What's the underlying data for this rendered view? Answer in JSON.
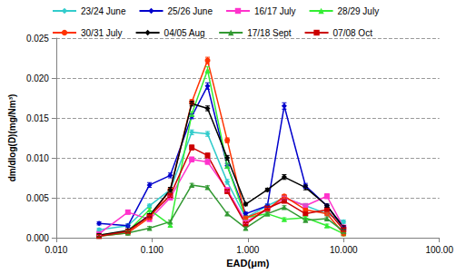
{
  "chart_data": {
    "type": "line",
    "x_label": "EAD(μm)",
    "y_label": "dm/dlog(D)(mg/Nm³)",
    "log": "x",
    "grid": true,
    "legend": "top",
    "xlim": [
      0.01,
      100
    ],
    "xticks": [
      {
        "value": 0.01,
        "label": "0.010"
      },
      {
        "value": 0.1,
        "label": "0.100"
      },
      {
        "value": 1,
        "label": "1.000"
      },
      {
        "value": 10,
        "label": "10.000"
      },
      {
        "value": 100,
        "label": "100.00"
      }
    ],
    "ylim": [
      0,
      0.025
    ],
    "yticks": [
      {
        "value": 0,
        "label": "0.000"
      },
      {
        "value": 0.005,
        "label": "0.005"
      },
      {
        "value": 0.01,
        "label": "0.010"
      },
      {
        "value": 0.015,
        "label": "0.015"
      },
      {
        "value": 0.02,
        "label": "0.020"
      },
      {
        "value": 0.025,
        "label": "0.025"
      }
    ],
    "x": [
      0.028,
      0.056,
      0.094,
      0.155,
      0.26,
      0.38,
      0.61,
      0.95,
      1.6,
      2.4,
      4.0,
      6.7,
      10.0
    ],
    "series": [
      {
        "name": "23/24 June",
        "color": "#33CCCC",
        "marker": "diamond",
        "values": [
          0.001,
          0.0015,
          0.004,
          0.006,
          0.0132,
          0.013,
          0.007,
          0.0025,
          0.004,
          0.005,
          0.004,
          0.003,
          0.002
        ],
        "errors": [
          0.0002,
          0.0002,
          0.0002,
          0.0003,
          0.0003,
          0.0003,
          0.0003,
          0.0002,
          0.0002,
          0.0002,
          0.0002,
          0.0002,
          0.0002
        ]
      },
      {
        "name": "25/26 June",
        "color": "#0000CC",
        "marker": "diamond",
        "values": [
          0.0018,
          0.0015,
          0.0066,
          0.0078,
          0.0152,
          0.019,
          0.009,
          0.003,
          0.004,
          0.0165,
          0.0065,
          0.004,
          0.0012
        ],
        "errors": [
          0.0002,
          0.0002,
          0.0003,
          0.0003,
          0.0003,
          0.0004,
          0.0003,
          0.0002,
          0.0002,
          0.0004,
          0.0003,
          0.0002,
          0.0002
        ]
      },
      {
        "name": "16/17 July",
        "color": "#FF33CC",
        "marker": "square",
        "values": [
          0.0005,
          0.0032,
          0.0023,
          0.005,
          0.0098,
          0.0095,
          0.006,
          0.002,
          0.0035,
          0.005,
          0.004,
          0.0052,
          0.0013
        ],
        "errors": [
          0.0002,
          0.0002,
          0.0002,
          0.0002,
          0.0003,
          0.0003,
          0.0002,
          0.0002,
          0.0002,
          0.0002,
          0.0002,
          0.0003,
          0.0002
        ]
      },
      {
        "name": "28/29 July",
        "color": "#33EE33",
        "marker": "triangle",
        "values": [
          0.0003,
          0.0008,
          0.0035,
          0.0016,
          0.0155,
          0.021,
          0.009,
          0.0025,
          0.003,
          0.0023,
          0.0025,
          0.0015,
          0.0005
        ],
        "errors": [
          0.0002,
          0.0002,
          0.0002,
          0.0002,
          0.0003,
          0.0004,
          0.0003,
          0.0002,
          0.0002,
          0.0002,
          0.0002,
          0.0002,
          0.0002
        ]
      },
      {
        "name": "30/31 July",
        "color": "#FF3300",
        "marker": "circle",
        "values": [
          0.0002,
          0.0006,
          0.0025,
          0.006,
          0.017,
          0.0222,
          0.0122,
          0.0025,
          0.0035,
          0.0052,
          0.0035,
          0.003,
          0.0005
        ],
        "errors": [
          0.0002,
          0.0002,
          0.0002,
          0.0003,
          0.0003,
          0.0004,
          0.0003,
          0.0002,
          0.0002,
          0.0002,
          0.0002,
          0.0002,
          0.0002
        ]
      },
      {
        "name": "04/05 Aug",
        "color": "#000000",
        "marker": "diamond",
        "values": [
          0.0003,
          0.0009,
          0.0028,
          0.006,
          0.0168,
          0.0162,
          0.01,
          0.0042,
          0.006,
          0.0076,
          0.0063,
          0.004,
          0.0013
        ],
        "errors": [
          0.0002,
          0.0002,
          0.0002,
          0.0003,
          0.0003,
          0.0003,
          0.0003,
          0.0002,
          0.0002,
          0.0003,
          0.0003,
          0.0002,
          0.0002
        ]
      },
      {
        "name": "17/18 Sept",
        "color": "#339933",
        "marker": "triangle",
        "values": [
          0.0002,
          0.0006,
          0.0012,
          0.002,
          0.0066,
          0.0063,
          0.003,
          0.0012,
          0.003,
          0.0038,
          0.0022,
          0.0024,
          0.0008
        ],
        "errors": [
          0.0002,
          0.0002,
          0.0002,
          0.0002,
          0.0002,
          0.0002,
          0.0002,
          0.0002,
          0.0002,
          0.0002,
          0.0002,
          0.0002,
          0.0002
        ]
      },
      {
        "name": "07/08 Oct",
        "color": "#CC0000",
        "marker": "dash",
        "values": [
          0.0002,
          0.0008,
          0.0027,
          0.0053,
          0.0113,
          0.0103,
          0.0058,
          0.0017,
          0.0037,
          0.0046,
          0.003,
          0.0035,
          0.001
        ],
        "errors": [
          0.0002,
          0.0002,
          0.0002,
          0.0002,
          0.0003,
          0.0003,
          0.0002,
          0.0002,
          0.0002,
          0.0002,
          0.0002,
          0.0002,
          0.0002
        ]
      }
    ]
  }
}
